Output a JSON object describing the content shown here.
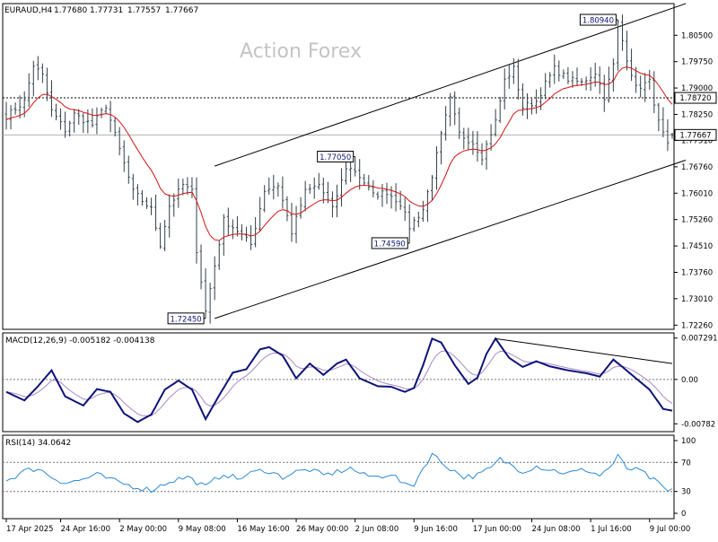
{
  "chart_data": {
    "type": "candlestick",
    "header": {
      "symbol": "EURAUD,H4",
      "open": "1.77680",
      "high": "1.77731",
      "low": "1.77557",
      "close": "1.77667"
    },
    "watermark": "Action Forex",
    "price_axis": {
      "ticks": [
        "1.80500",
        "1.79750",
        "1.79000",
        "1.78250",
        "1.77510",
        "1.76760",
        "1.76010",
        "1.75260",
        "1.74510",
        "1.73760",
        "1.73010",
        "1.72260"
      ],
      "ylim": [
        1.7214,
        1.814
      ],
      "current_price": "1.77667",
      "current_price_value": 1.77667,
      "hline_label": "1.78720",
      "hline_value": 1.7872,
      "hline_axis_label": "1.78720",
      "current_axis_label": "1.77667"
    },
    "annotations": [
      {
        "label": "1.80940",
        "value": 1.8094,
        "bar": 135
      },
      {
        "label": "1.77050",
        "value": 1.7705,
        "bar": 77
      },
      {
        "label": "1.74590",
        "value": 1.7459,
        "bar": 89
      },
      {
        "label": "1.72450",
        "value": 1.7245,
        "bar": 44
      }
    ],
    "channel": {
      "upper": [
        [
          46,
          1.7678
        ],
        [
          150,
          1.814
        ]
      ],
      "lower": [
        [
          46,
          1.7245
        ],
        [
          150,
          1.7695
        ]
      ]
    },
    "time_axis": [
      "17 Apr 2025",
      "24 Apr 16:00",
      "2 May 00:00",
      "9 May 08:00",
      "16 May 16:00",
      "26 May 00:00",
      "2 Jun 08:00",
      "9 Jun 16:00",
      "17 Jun 00:00",
      "24 Jun 08:00",
      "1 Jul 16:00",
      "9 Jul 00:00"
    ],
    "time_axis_bars": [
      0,
      12,
      25,
      38,
      51,
      64,
      77,
      90,
      103,
      116,
      129,
      142
    ],
    "bar_count": 148,
    "close_anchors": [
      [
        0,
        1.782
      ],
      [
        4,
        1.7862
      ],
      [
        6,
        1.7965
      ],
      [
        8,
        1.7935
      ],
      [
        10,
        1.7835
      ],
      [
        13,
        1.778
      ],
      [
        15,
        1.7825
      ],
      [
        19,
        1.7795
      ],
      [
        22,
        1.785
      ],
      [
        25,
        1.7725
      ],
      [
        28,
        1.7605
      ],
      [
        32,
        1.7555
      ],
      [
        34,
        1.7455
      ],
      [
        36,
        1.7565
      ],
      [
        39,
        1.7625
      ],
      [
        41,
        1.7605
      ],
      [
        42,
        1.744
      ],
      [
        44,
        1.7265
      ],
      [
        46,
        1.7395
      ],
      [
        48,
        1.7525
      ],
      [
        51,
        1.7495
      ],
      [
        54,
        1.7455
      ],
      [
        57,
        1.761
      ],
      [
        60,
        1.7625
      ],
      [
        63,
        1.749
      ],
      [
        66,
        1.7605
      ],
      [
        69,
        1.7625
      ],
      [
        72,
        1.7555
      ],
      [
        75,
        1.7675
      ],
      [
        77,
        1.7665
      ],
      [
        79,
        1.7632
      ],
      [
        81,
        1.7595
      ],
      [
        84,
        1.7605
      ],
      [
        87,
        1.7572
      ],
      [
        89,
        1.7505
      ],
      [
        92,
        1.7555
      ],
      [
        94,
        1.7652
      ],
      [
        96,
        1.7765
      ],
      [
        98,
        1.7868
      ],
      [
        100,
        1.777
      ],
      [
        103,
        1.7745
      ],
      [
        105,
        1.7705
      ],
      [
        108,
        1.7805
      ],
      [
        110,
        1.7922
      ],
      [
        112,
        1.7955
      ],
      [
        114,
        1.7845
      ],
      [
        117,
        1.7862
      ],
      [
        119,
        1.7912
      ],
      [
        121,
        1.7955
      ],
      [
        124,
        1.7925
      ],
      [
        127,
        1.7915
      ],
      [
        130,
        1.7945
      ],
      [
        132,
        1.7875
      ],
      [
        134,
        1.7965
      ],
      [
        135,
        1.8085
      ],
      [
        137,
        1.7985
      ],
      [
        139,
        1.79
      ],
      [
        142,
        1.7918
      ],
      [
        144,
        1.7802
      ],
      [
        146,
        1.7735
      ],
      [
        147,
        1.77667
      ]
    ],
    "ma": {
      "type": "SMA",
      "period": 55,
      "color": "#d41414"
    },
    "macd": {
      "label": "MACD(12,26,9) -0.005182 -0.004138",
      "ticks": [
        "0.007291",
        "0.00",
        "-0.00782"
      ],
      "ylim": [
        -0.0092,
        0.0082
      ],
      "zero_label": "0.00",
      "main_color": "#0d1378",
      "signal_color": "#a988c8",
      "anchors": [
        [
          0,
          -0.0022
        ],
        [
          4,
          -0.0037
        ],
        [
          7,
          -0.0012
        ],
        [
          10,
          0.0016
        ],
        [
          13,
          -0.003
        ],
        [
          17,
          -0.0046
        ],
        [
          20,
          -0.0017
        ],
        [
          23,
          -0.0022
        ],
        [
          26,
          -0.006
        ],
        [
          29,
          -0.0075
        ],
        [
          32,
          -0.0062
        ],
        [
          35,
          -0.0018
        ],
        [
          38,
          -0.0002
        ],
        [
          41,
          -0.0018
        ],
        [
          44,
          -0.007
        ],
        [
          47,
          -0.0028
        ],
        [
          50,
          0.0012
        ],
        [
          53,
          0.0018
        ],
        [
          56,
          0.0053
        ],
        [
          58,
          0.0057
        ],
        [
          61,
          0.0042
        ],
        [
          64,
          0.0002
        ],
        [
          67,
          0.0028
        ],
        [
          70,
          0.0008
        ],
        [
          73,
          0.0028
        ],
        [
          75,
          0.0035
        ],
        [
          78,
          0.0002
        ],
        [
          82,
          -0.0012
        ],
        [
          85,
          -0.0013
        ],
        [
          88,
          -0.0022
        ],
        [
          90,
          -0.0015
        ],
        [
          92,
          0.0025
        ],
        [
          94,
          0.0072
        ],
        [
          96,
          0.0065
        ],
        [
          99,
          0.0025
        ],
        [
          102,
          -0.0008
        ],
        [
          104,
          0.0003
        ],
        [
          106,
          0.0045
        ],
        [
          108,
          0.0072
        ],
        [
          111,
          0.0038
        ],
        [
          114,
          0.0022
        ],
        [
          117,
          0.0032
        ],
        [
          120,
          0.0023
        ],
        [
          124,
          0.0016
        ],
        [
          128,
          0.0011
        ],
        [
          131,
          0.0005
        ],
        [
          134,
          0.0035
        ],
        [
          136,
          0.0022
        ],
        [
          139,
          0.0002
        ],
        [
          142,
          -0.0018
        ],
        [
          145,
          -0.0052
        ],
        [
          147,
          -0.0055
        ]
      ],
      "trendline": [
        [
          108,
          0.0072
        ],
        [
          147,
          0.0028
        ]
      ]
    },
    "rsi": {
      "label": "RSI(14) 34.0642",
      "ticks": [
        "100",
        "70",
        "30",
        "0"
      ],
      "levels": [
        70,
        30
      ],
      "ylim": [
        0,
        100
      ],
      "color": "#2b8ad6",
      "anchors": [
        [
          0,
          45
        ],
        [
          4,
          58
        ],
        [
          7,
          62
        ],
        [
          10,
          50
        ],
        [
          13,
          42
        ],
        [
          16,
          45
        ],
        [
          20,
          53
        ],
        [
          24,
          44
        ],
        [
          28,
          37
        ],
        [
          32,
          32
        ],
        [
          36,
          44
        ],
        [
          40,
          50
        ],
        [
          44,
          36
        ],
        [
          48,
          55
        ],
        [
          51,
          47
        ],
        [
          54,
          55
        ],
        [
          57,
          60
        ],
        [
          61,
          50
        ],
        [
          64,
          57
        ],
        [
          67,
          60
        ],
        [
          70,
          52
        ],
        [
          73,
          57
        ],
        [
          76,
          62
        ],
        [
          79,
          52
        ],
        [
          82,
          50
        ],
        [
          85,
          55
        ],
        [
          88,
          38
        ],
        [
          90,
          40
        ],
        [
          92,
          62
        ],
        [
          94,
          82
        ],
        [
          96,
          70
        ],
        [
          98,
          62
        ],
        [
          101,
          50
        ],
        [
          104,
          52
        ],
        [
          107,
          62
        ],
        [
          109,
          74
        ],
        [
          111,
          68
        ],
        [
          114,
          58
        ],
        [
          117,
          65
        ],
        [
          120,
          60
        ],
        [
          124,
          55
        ],
        [
          128,
          60
        ],
        [
          131,
          52
        ],
        [
          134,
          68
        ],
        [
          135,
          78
        ],
        [
          137,
          62
        ],
        [
          140,
          58
        ],
        [
          143,
          45
        ],
        [
          146,
          30
        ],
        [
          147,
          34
        ]
      ]
    }
  }
}
